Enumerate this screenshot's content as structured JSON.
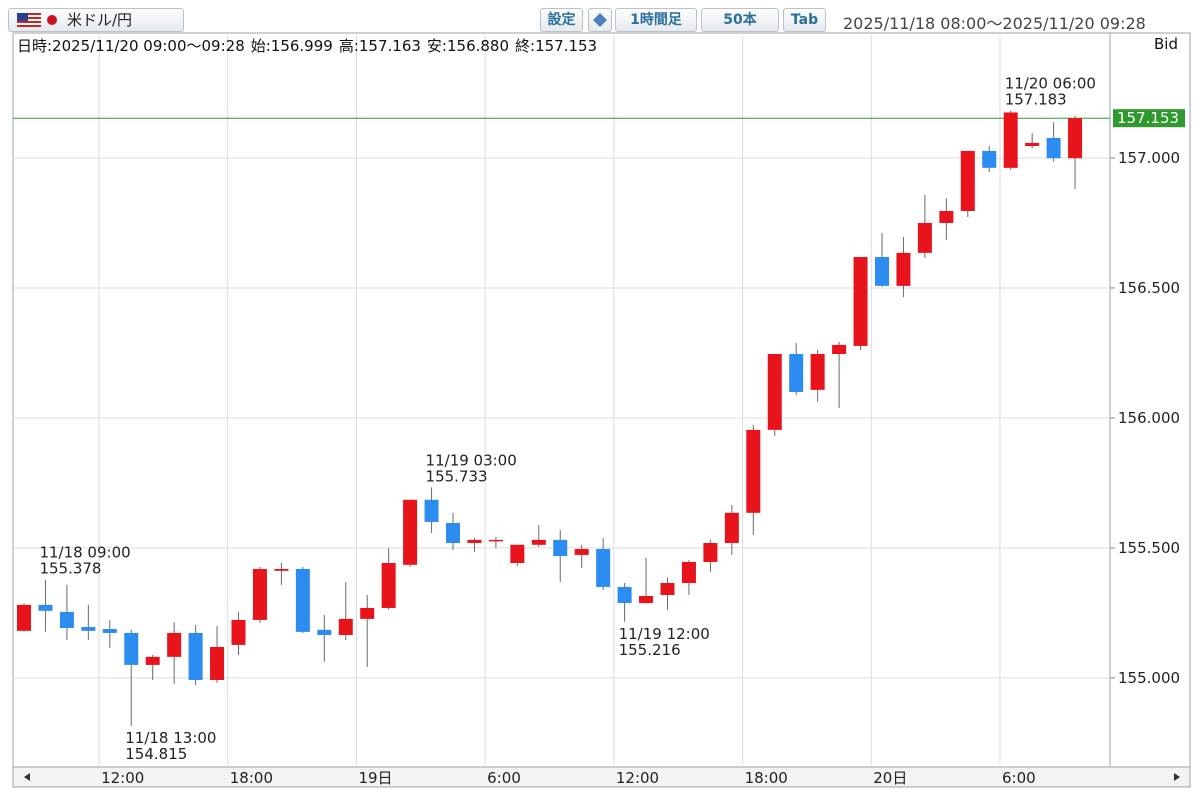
{
  "header": {
    "pair": "米ドル/円",
    "buttons": [
      "設定",
      "1時間足",
      "50本",
      "Tab"
    ],
    "range": "2025/11/18 08:00～2025/11/20 09:28",
    "info": [
      "日時:2025/11/20 09:00～09:28",
      "始:156.999",
      "高:157.163",
      "安:156.880",
      "終:157.153"
    ],
    "price_side": "Bid"
  },
  "chart_data": {
    "type": "candlestick",
    "x": [
      null,
      null,
      null,
      null,
      "12:00",
      null,
      null,
      null,
      null,
      null,
      "18:00",
      null,
      null,
      null,
      null,
      null,
      "19日",
      null,
      null,
      null,
      null,
      null,
      "6:00",
      null,
      null,
      null,
      null,
      null,
      "12:00",
      null,
      null,
      null,
      null,
      null,
      "18:00",
      null,
      null,
      null,
      null,
      null,
      "20日",
      null,
      null,
      null,
      null,
      null,
      "6:00",
      null,
      null,
      null
    ],
    "open": [
      155.181,
      155.281,
      155.254,
      155.196,
      155.188,
      155.173,
      155.05,
      155.081,
      155.173,
      154.992,
      155.127,
      155.223,
      155.412,
      155.419,
      155.185,
      155.165,
      155.227,
      155.269,
      155.435,
      155.685,
      155.596,
      155.519,
      155.527,
      155.442,
      155.512,
      155.531,
      155.473,
      155.496,
      155.35,
      155.288,
      155.319,
      155.365,
      155.446,
      155.519,
      155.635,
      155.954,
      156.246,
      156.108,
      156.246,
      156.277,
      156.619,
      156.508,
      156.635,
      156.75,
      156.796,
      157.027,
      156.962,
      157.046,
      157.077,
      156.999
    ],
    "high": [
      155.285,
      155.378,
      155.358,
      155.281,
      155.223,
      155.185,
      155.088,
      155.215,
      155.204,
      155.2,
      155.254,
      155.427,
      155.442,
      155.427,
      155.242,
      155.369,
      155.319,
      155.5,
      155.685,
      155.733,
      155.635,
      155.538,
      155.542,
      155.512,
      155.588,
      155.569,
      155.512,
      155.538,
      155.365,
      155.462,
      155.385,
      155.454,
      155.531,
      155.665,
      155.973,
      156.246,
      156.288,
      156.262,
      156.292,
      156.619,
      156.712,
      156.696,
      156.858,
      156.846,
      157.027,
      157.046,
      157.183,
      157.096,
      157.138,
      157.163
    ],
    "low": [
      155.178,
      155.177,
      155.146,
      155.146,
      155.115,
      154.815,
      154.992,
      154.977,
      154.973,
      154.981,
      155.088,
      155.212,
      155.358,
      155.173,
      155.062,
      155.146,
      155.042,
      155.262,
      155.427,
      155.558,
      155.492,
      155.485,
      155.5,
      155.431,
      155.504,
      155.369,
      155.423,
      155.338,
      155.216,
      155.285,
      155.262,
      155.319,
      155.408,
      155.473,
      155.55,
      155.931,
      156.088,
      156.062,
      156.038,
      156.262,
      156.504,
      156.465,
      156.615,
      156.685,
      156.773,
      156.946,
      156.954,
      157.038,
      156.985,
      156.88
    ],
    "close": [
      155.281,
      155.258,
      155.192,
      155.181,
      155.173,
      155.05,
      155.081,
      155.173,
      154.992,
      155.119,
      155.223,
      155.419,
      155.419,
      155.177,
      155.165,
      155.227,
      155.269,
      155.442,
      155.685,
      155.6,
      155.519,
      155.531,
      155.531,
      155.512,
      155.531,
      155.469,
      155.496,
      155.35,
      155.288,
      155.315,
      155.365,
      155.446,
      155.519,
      155.635,
      155.954,
      156.246,
      156.1,
      156.246,
      156.281,
      156.619,
      156.508,
      156.635,
      156.75,
      156.796,
      157.027,
      156.962,
      157.175,
      157.058,
      156.999,
      157.153
    ],
    "up_color": "#e8141c",
    "down_color": "#2d8cf0",
    "wick_color": "#6a6a6a",
    "ylim": [
      154.665,
      157.473
    ],
    "yticks": [
      {
        "value": 155,
        "label": "155.000"
      },
      {
        "value": 155.5,
        "label": "155.500"
      },
      {
        "value": 156,
        "label": "156.000"
      },
      {
        "value": 156.5,
        "label": "156.500"
      },
      {
        "value": 157,
        "label": "157.000"
      }
    ],
    "grid": true,
    "current_price": 157.153,
    "current_price_color": "#2e9a2e",
    "annotations": [
      {
        "label": "11/18 09:00",
        "value": 155.378
      },
      {
        "label": "11/18 13:00",
        "value": 154.815
      },
      {
        "label": "11/19 03:00",
        "value": 155.733
      },
      {
        "label": "11/19 12:00",
        "value": 155.216
      },
      {
        "label": "11/20 06:00",
        "value": 157.183
      }
    ]
  }
}
